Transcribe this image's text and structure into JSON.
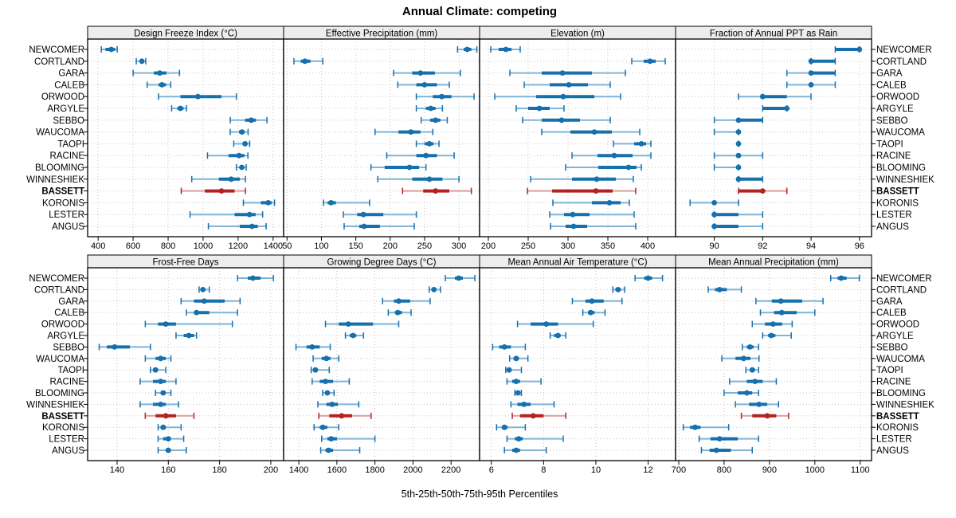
{
  "title": "Annual Climate: competing",
  "footer": "5th-25th-50th-75th-95th Percentiles",
  "colors": {
    "point": "#1670ad",
    "point_light": "#7fb3d8",
    "highlight": "#b22222",
    "highlight_light": "#dc9d9d",
    "header_bg": "#ededed",
    "grid": "#c4c4c4",
    "border": "#000000",
    "text": "#000000"
  },
  "chart_data": {
    "type": "dotplot-percentile-intervals",
    "percentiles": [
      "5th",
      "25th",
      "50th",
      "75th",
      "95th"
    ],
    "legend_note": "5th-25th-50th-75th-95th Percentiles",
    "highlight_category": "BASSETT",
    "layout": {
      "rows": 2,
      "cols": 4,
      "grid": "dotted"
    },
    "categories": [
      "NEWCOMER",
      "CORTLAND",
      "GARA",
      "CALEB",
      "ORWOOD",
      "ARGYLE",
      "SEBBO",
      "WAUCOMA",
      "TAOPI",
      "RACINE",
      "BLOOMING",
      "WINNESHIEK",
      "BASSETT",
      "KORONIS",
      "LESTER",
      "ANGUS"
    ],
    "panels": [
      {
        "title": "Design Freeze Index (°C)",
        "xlim": [
          340,
          1460
        ],
        "ticks": [
          400,
          600,
          800,
          1000,
          1200,
          1400
        ],
        "values": [
          [
            418,
            442,
            475,
            497,
            509
          ],
          [
            618,
            638,
            650,
            661,
            672
          ],
          [
            600,
            718,
            752,
            790,
            865
          ],
          [
            680,
            745,
            765,
            788,
            815
          ],
          [
            745,
            870,
            970,
            1105,
            1190
          ],
          [
            820,
            853,
            870,
            888,
            905
          ],
          [
            1155,
            1240,
            1275,
            1302,
            1365
          ],
          [
            1155,
            1205,
            1222,
            1237,
            1257
          ],
          [
            1175,
            1225,
            1240,
            1251,
            1266
          ],
          [
            1025,
            1145,
            1205,
            1236,
            1256
          ],
          [
            1190,
            1210,
            1221,
            1232,
            1246
          ],
          [
            935,
            1090,
            1160,
            1210,
            1242
          ],
          [
            875,
            1010,
            1105,
            1180,
            1242
          ],
          [
            1230,
            1330,
            1372,
            1392,
            1408
          ],
          [
            925,
            1180,
            1265,
            1300,
            1340
          ],
          [
            1030,
            1210,
            1280,
            1312,
            1360
          ]
        ]
      },
      {
        "title": "Effective Precipitation (mm)",
        "xlim": [
          45,
          330
        ],
        "ticks": [
          50,
          100,
          150,
          200,
          250,
          300
        ],
        "values": [
          [
            298,
            307,
            312,
            318,
            326
          ],
          [
            60,
            70,
            76,
            84,
            102
          ],
          [
            205,
            232,
            244,
            265,
            302
          ],
          [
            211,
            238,
            250,
            268,
            286
          ],
          [
            238,
            262,
            275,
            289,
            322
          ],
          [
            238,
            252,
            259,
            266,
            276
          ],
          [
            245,
            258,
            266,
            273,
            283
          ],
          [
            178,
            212,
            230,
            244,
            262
          ],
          [
            238,
            250,
            257,
            263,
            271
          ],
          [
            195,
            238,
            252,
            268,
            293
          ],
          [
            172,
            192,
            228,
            242,
            252
          ],
          [
            182,
            232,
            257,
            276,
            300
          ],
          [
            218,
            248,
            266,
            286,
            318
          ],
          [
            103,
            109,
            114,
            121,
            170
          ],
          [
            132,
            152,
            161,
            190,
            238
          ],
          [
            133,
            155,
            162,
            185,
            235
          ]
        ]
      },
      {
        "title": "Elevation (m)",
        "xlim": [
          189,
          435
        ],
        "ticks": [
          200,
          250,
          300,
          350,
          400
        ],
        "values": [
          [
            203,
            213,
            222,
            229,
            240
          ],
          [
            380,
            395,
            403,
            410,
            422
          ],
          [
            227,
            267,
            293,
            330,
            372
          ],
          [
            245,
            277,
            301,
            325,
            353
          ],
          [
            208,
            260,
            294,
            333,
            366
          ],
          [
            235,
            250,
            264,
            277,
            295
          ],
          [
            243,
            267,
            292,
            315,
            353
          ],
          [
            267,
            303,
            333,
            355,
            390
          ],
          [
            357,
            383,
            392,
            398,
            404
          ],
          [
            305,
            337,
            358,
            381,
            404
          ],
          [
            297,
            338,
            376,
            386,
            392
          ],
          [
            253,
            305,
            336,
            360,
            382
          ],
          [
            249,
            280,
            335,
            356,
            385
          ],
          [
            281,
            330,
            352,
            366,
            377
          ],
          [
            277,
            295,
            306,
            327,
            383
          ],
          [
            278,
            297,
            307,
            324,
            385
          ]
        ]
      },
      {
        "title": "Fraction of Annual PPT as Rain",
        "xlim": [
          88.4,
          96.5
        ],
        "ticks": [
          90,
          92,
          94,
          96
        ],
        "values": [
          [
            95,
            95,
            96,
            96,
            96
          ],
          [
            94,
            94,
            94,
            95,
            95
          ],
          [
            93,
            94,
            94,
            95,
            95
          ],
          [
            93,
            94,
            94,
            94,
            95
          ],
          [
            91,
            92,
            92,
            93,
            94
          ],
          [
            92,
            92,
            93,
            93,
            93
          ],
          [
            90,
            91,
            91,
            92,
            92
          ],
          [
            90,
            91,
            91,
            91,
            91
          ],
          [
            91,
            91,
            91,
            91,
            91
          ],
          [
            90,
            91,
            91,
            91,
            92
          ],
          [
            90,
            91,
            91,
            91,
            91
          ],
          [
            91,
            91,
            91,
            92,
            92
          ],
          [
            91,
            91,
            92,
            92,
            93
          ],
          [
            89,
            90,
            90,
            90,
            91
          ],
          [
            90,
            90,
            90,
            91,
            92
          ],
          [
            90,
            90,
            90,
            91,
            92
          ]
        ]
      },
      {
        "title": "Frost-Free Days",
        "xlim": [
          128.5,
          205
        ],
        "ticks": [
          140,
          160,
          180,
          200
        ],
        "values": [
          [
            187,
            191,
            193,
            196,
            201
          ],
          [
            172,
            173,
            173.5,
            174,
            176
          ],
          [
            165,
            170,
            174,
            182,
            188
          ],
          [
            167,
            170,
            171,
            176,
            187
          ],
          [
            151,
            156,
            159,
            163,
            185
          ],
          [
            163,
            166,
            168,
            170,
            171
          ],
          [
            133,
            136,
            139,
            145,
            153
          ],
          [
            151,
            155,
            157,
            159,
            161
          ],
          [
            153,
            154,
            155,
            156,
            159
          ],
          [
            149,
            154,
            157,
            159,
            163
          ],
          [
            155,
            157,
            158,
            159,
            161
          ],
          [
            149,
            154,
            157,
            159,
            164
          ],
          [
            151,
            155,
            159,
            163,
            170
          ],
          [
            156,
            157,
            158,
            159,
            165
          ],
          [
            156,
            158,
            160,
            161,
            166
          ],
          [
            156,
            159,
            160,
            161,
            167
          ]
        ]
      },
      {
        "title": "Growing Degree Days (°C)",
        "xlim": [
          1320,
          2350
        ],
        "ticks": [
          1400,
          1600,
          1800,
          2000,
          2200
        ],
        "values": [
          [
            2170,
            2220,
            2240,
            2262,
            2325
          ],
          [
            2085,
            2100,
            2110,
            2122,
            2145
          ],
          [
            1840,
            1900,
            1925,
            1985,
            2090
          ],
          [
            1870,
            1905,
            1920,
            1942,
            1990
          ],
          [
            1540,
            1610,
            1660,
            1790,
            1925
          ],
          [
            1645,
            1667,
            1685,
            1702,
            1740
          ],
          [
            1385,
            1440,
            1470,
            1510,
            1565
          ],
          [
            1475,
            1520,
            1545,
            1566,
            1610
          ],
          [
            1465,
            1476,
            1487,
            1500,
            1560
          ],
          [
            1470,
            1510,
            1540,
            1580,
            1665
          ],
          [
            1525,
            1540,
            1550,
            1561,
            1585
          ],
          [
            1500,
            1545,
            1575,
            1605,
            1715
          ],
          [
            1505,
            1560,
            1625,
            1680,
            1780
          ],
          [
            1480,
            1510,
            1526,
            1550,
            1610
          ],
          [
            1520,
            1550,
            1570,
            1600,
            1800
          ],
          [
            1515,
            1540,
            1556,
            1580,
            1720
          ]
        ]
      },
      {
        "title": "Mean Annual Air Temperature (°C)",
        "xlim": [
          5.55,
          13.05
        ],
        "ticks": [
          6,
          8,
          10,
          12
        ],
        "values": [
          [
            11.5,
            11.85,
            12.0,
            12.15,
            12.55
          ],
          [
            10.65,
            10.75,
            10.85,
            10.95,
            11.1
          ],
          [
            9.1,
            9.6,
            9.85,
            10.3,
            11.0
          ],
          [
            9.5,
            9.7,
            9.8,
            9.95,
            10.35
          ],
          [
            7.0,
            7.5,
            8.1,
            8.55,
            9.9
          ],
          [
            8.25,
            8.4,
            8.55,
            8.65,
            8.85
          ],
          [
            6.05,
            6.3,
            6.5,
            6.75,
            7.3
          ],
          [
            6.7,
            6.85,
            6.95,
            7.05,
            7.4
          ],
          [
            6.55,
            6.62,
            6.68,
            6.75,
            7.15
          ],
          [
            6.6,
            6.8,
            6.95,
            7.1,
            7.9
          ],
          [
            6.9,
            6.98,
            7.02,
            7.08,
            7.15
          ],
          [
            6.75,
            7.0,
            7.25,
            7.5,
            8.4
          ],
          [
            6.8,
            7.1,
            7.6,
            8.0,
            8.85
          ],
          [
            6.2,
            6.4,
            6.5,
            6.62,
            7.3
          ],
          [
            6.6,
            6.9,
            7.05,
            7.2,
            8.75
          ],
          [
            6.5,
            6.8,
            6.95,
            7.1,
            8.1
          ]
        ]
      },
      {
        "title": "Mean Annual Precipitation (mm)",
        "xlim": [
          693,
          1125
        ],
        "ticks": [
          700,
          800,
          900,
          1000,
          1100
        ],
        "values": [
          [
            1035,
            1050,
            1058,
            1070,
            1098
          ],
          [
            765,
            780,
            790,
            806,
            838
          ],
          [
            870,
            905,
            925,
            972,
            1018
          ],
          [
            880,
            910,
            927,
            960,
            1000
          ],
          [
            862,
            890,
            908,
            928,
            950
          ],
          [
            885,
            897,
            904,
            913,
            948
          ],
          [
            840,
            850,
            857,
            865,
            876
          ],
          [
            795,
            825,
            843,
            858,
            877
          ],
          [
            848,
            857,
            862,
            868,
            876
          ],
          [
            812,
            850,
            868,
            885,
            915
          ],
          [
            800,
            830,
            850,
            862,
            876
          ],
          [
            825,
            855,
            877,
            895,
            920
          ],
          [
            838,
            862,
            895,
            915,
            942
          ],
          [
            710,
            725,
            736,
            748,
            810
          ],
          [
            745,
            770,
            790,
            830,
            876
          ],
          [
            750,
            768,
            783,
            815,
            862
          ]
        ]
      }
    ]
  }
}
